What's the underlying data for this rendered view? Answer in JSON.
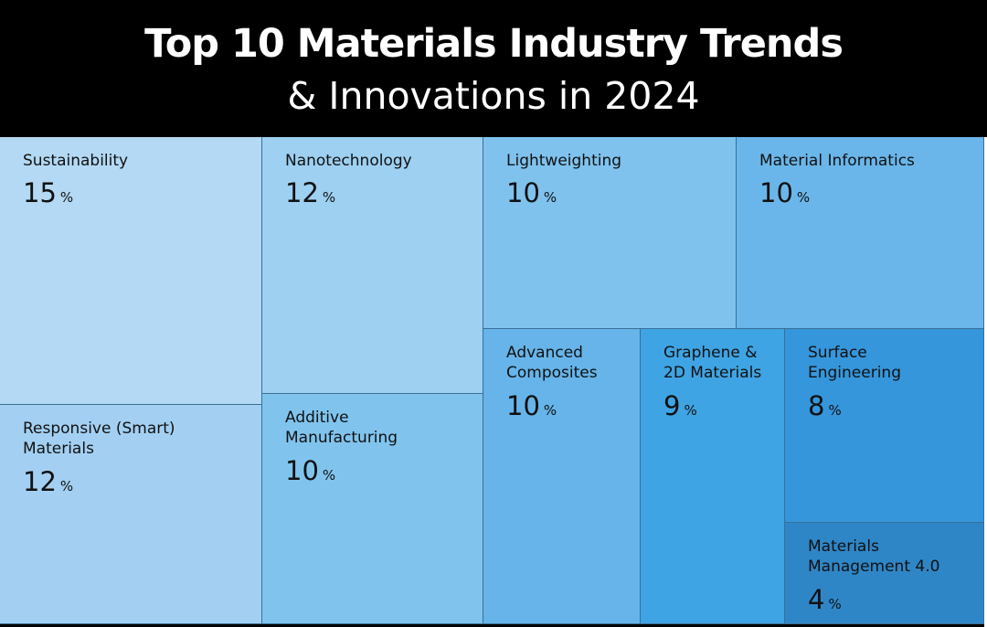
{
  "header": {
    "title": "Top 10 Materials Industry Trends",
    "subtitle": "& Innovations in 2024"
  },
  "chart_data": {
    "type": "treemap",
    "title": "Top 10 Materials Industry Trends",
    "subtitle": "& Innovations in 2024",
    "unit": "%",
    "items": [
      {
        "label": "Sustainability",
        "value": 15,
        "color": "#b3d9f4"
      },
      {
        "label": "Responsive (Smart) Materials",
        "value": 12,
        "color": "#a3d0f2"
      },
      {
        "label": "Nanotechnology",
        "value": 12,
        "color": "#9dd0f1"
      },
      {
        "label": "Additive Manufacturing",
        "value": 10,
        "color": "#80c4ee"
      },
      {
        "label": "Lightweighting",
        "value": 10,
        "color": "#7fc2ee"
      },
      {
        "label": "Material Informatics",
        "value": 10,
        "color": "#6ab6ea"
      },
      {
        "label": "Advanced Composites",
        "value": 10,
        "color": "#66b4e9"
      },
      {
        "label": "Graphene & 2D Materials",
        "value": 9,
        "color": "#3fa4e3"
      },
      {
        "label": "Surface Engineering",
        "value": 8,
        "color": "#3596db"
      },
      {
        "label": "Materials Management 4.0",
        "value": 4,
        "color": "#2f86c6"
      }
    ]
  }
}
